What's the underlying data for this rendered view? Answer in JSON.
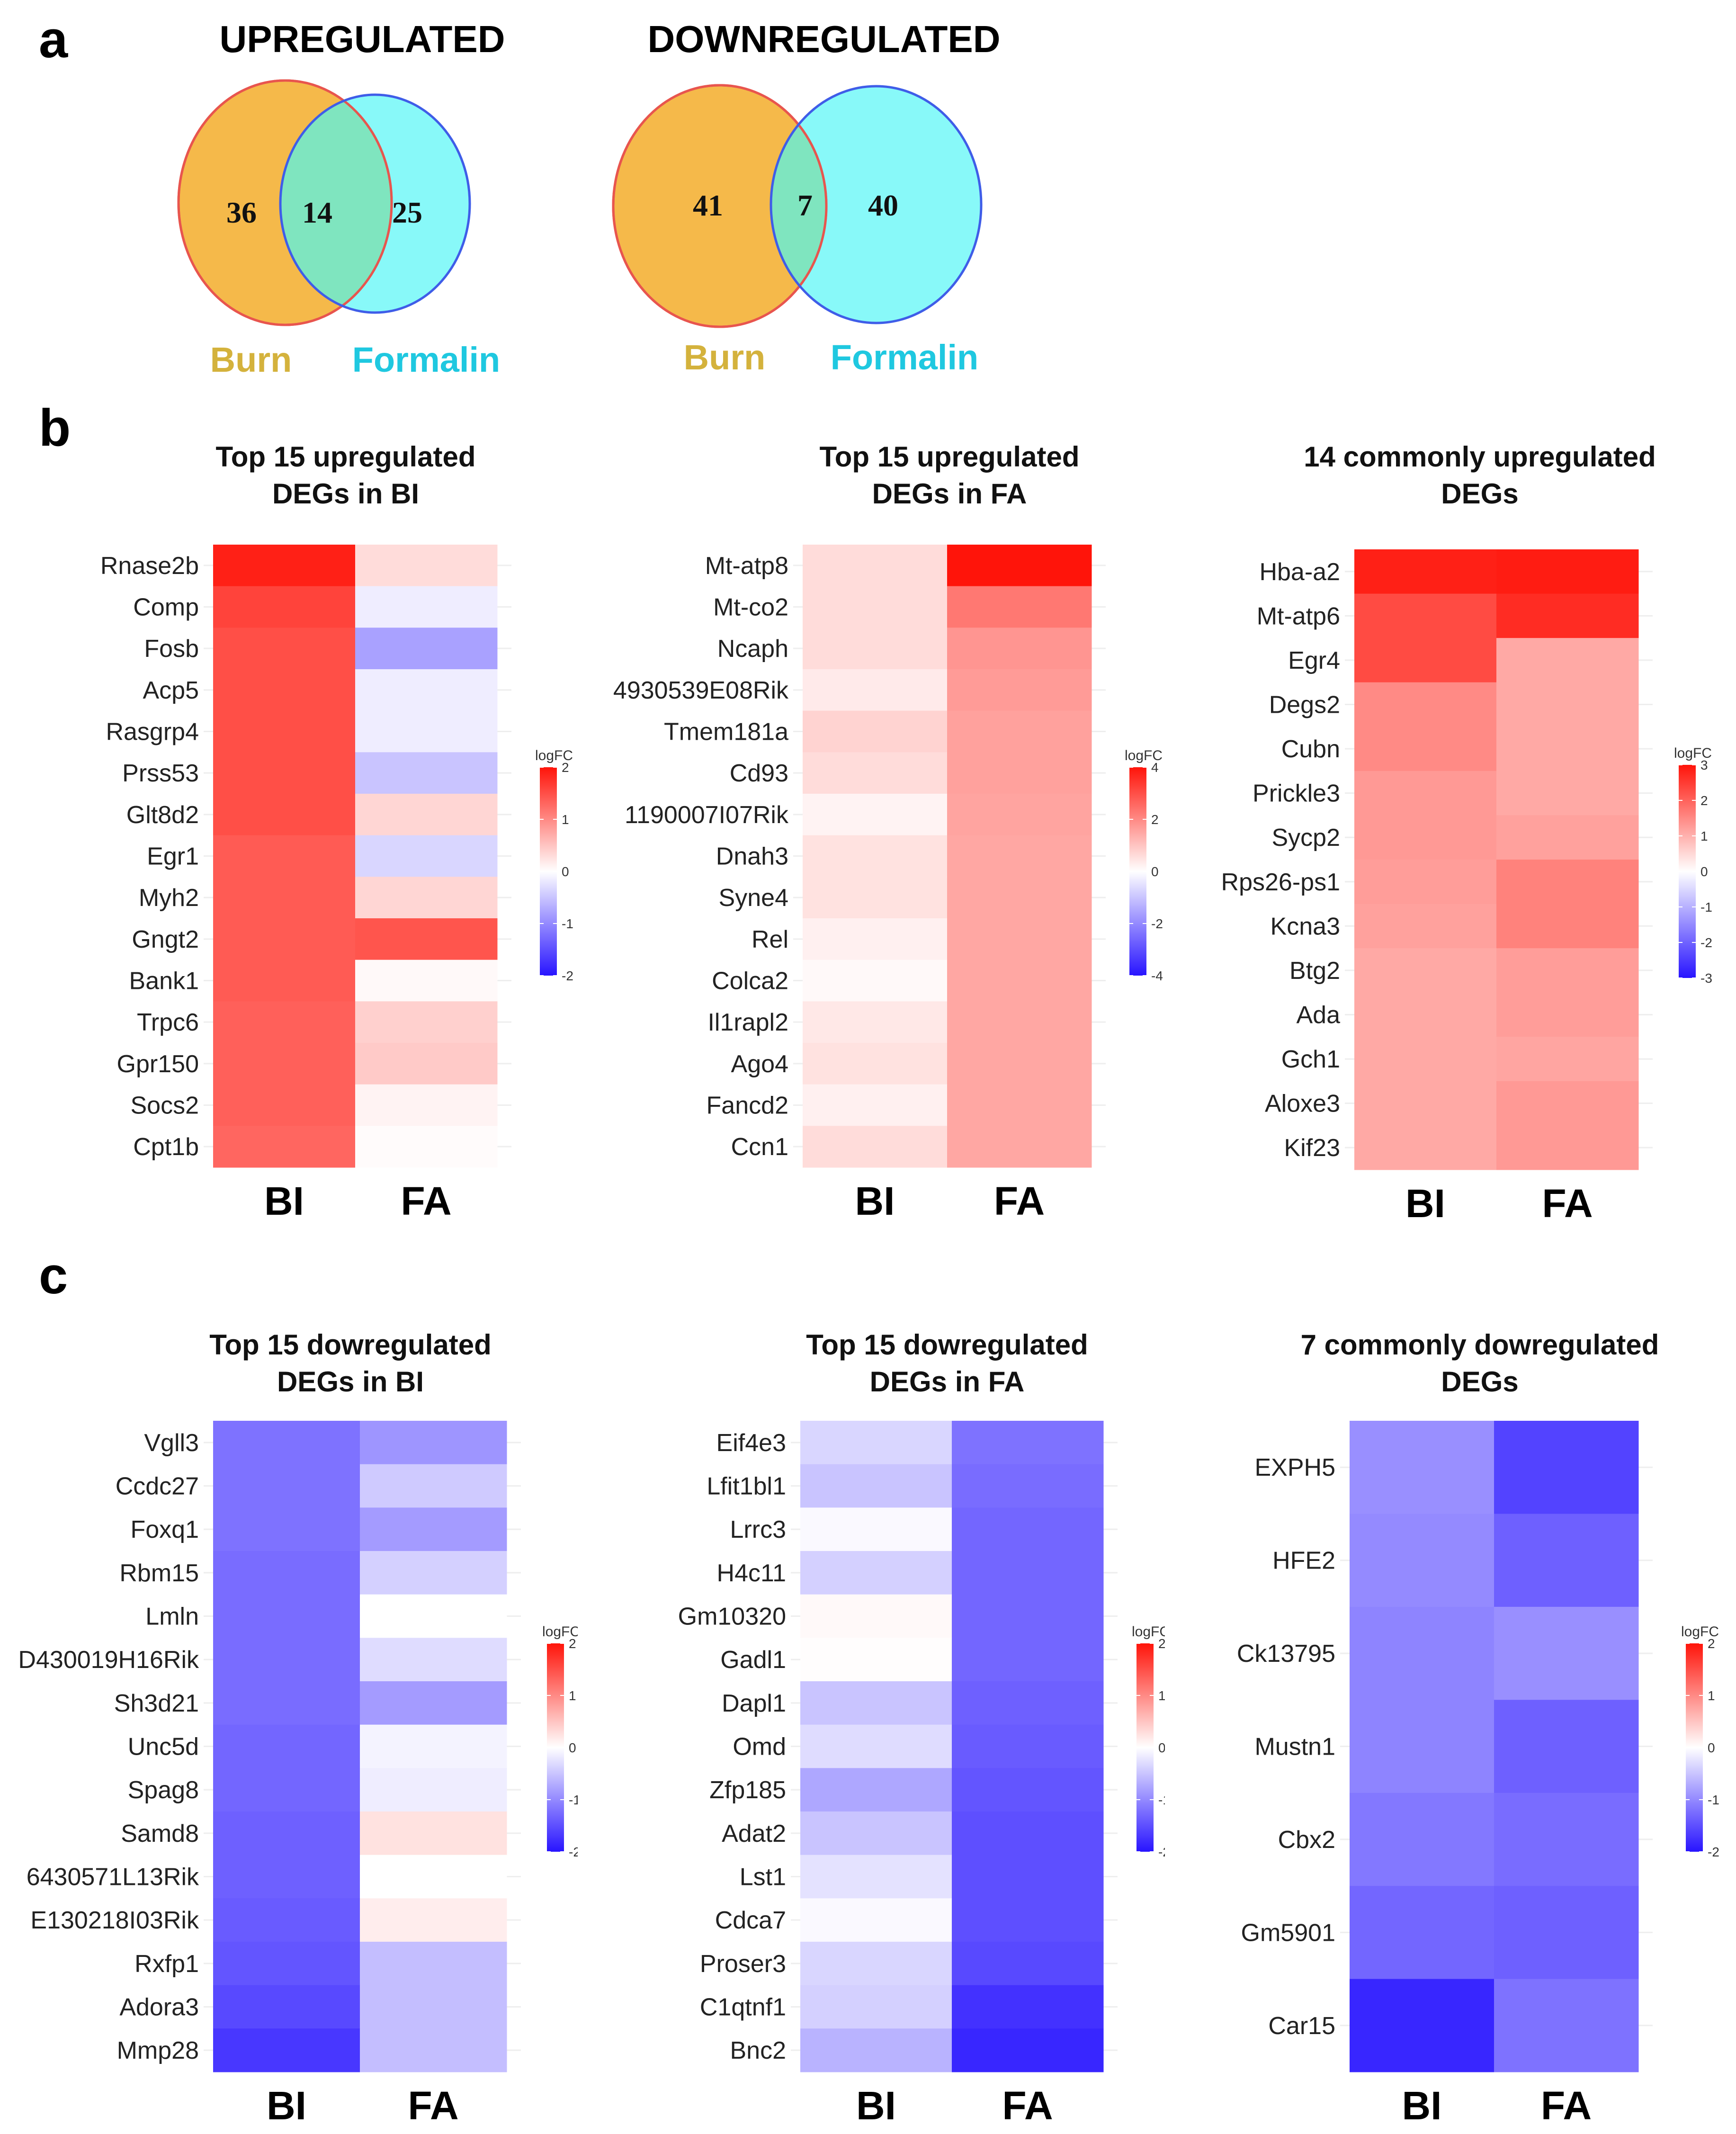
{
  "figure": {
    "panel_labels": [
      "a",
      "b",
      "c"
    ]
  },
  "chart_data": [
    {
      "type": "venn",
      "panel": "a",
      "title": "UPREGULATED",
      "sets": [
        {
          "name": "Burn",
          "color": "#f5b94a",
          "edge": "#e8554e",
          "label_color": "#d4b23c"
        },
        {
          "name": "Formalin",
          "color": "#39f5f5",
          "edge": "#3f5de8",
          "label_color": "#1fc8e0"
        }
      ],
      "only_a": 36,
      "overlap": 14,
      "only_b": 25
    },
    {
      "type": "venn",
      "panel": "a",
      "title": "DOWNREGULATED",
      "sets": [
        {
          "name": "Burn",
          "color": "#f5b94a",
          "edge": "#e8554e",
          "label_color": "#d4b23c"
        },
        {
          "name": "Formalin",
          "color": "#39f5f5",
          "edge": "#3f5de8",
          "label_color": "#1fc8e0"
        }
      ],
      "only_a": 41,
      "overlap": 7,
      "only_b": 40
    },
    {
      "type": "heatmap",
      "panel": "b",
      "title": [
        "Top 15 upregulated",
        "DEGs in BI"
      ],
      "columns": [
        "BI",
        "FA"
      ],
      "legend": {
        "title": "logFC",
        "range": [
          -2,
          2
        ],
        "ticks": [
          2,
          1,
          0,
          -1,
          -2
        ]
      },
      "rows": [
        "Rnase2b",
        "Comp",
        "Fosb",
        "Acp5",
        "Rasgrp4",
        "Prss53",
        "Glt8d2",
        "Egr1",
        "Myh2",
        "Gngt2",
        "Bank1",
        "Trpc6",
        "Gpr150",
        "Socs2",
        "Cpt1b"
      ],
      "values": [
        [
          1.9,
          0.3
        ],
        [
          1.6,
          -0.15
        ],
        [
          1.5,
          -0.8
        ],
        [
          1.5,
          -0.15
        ],
        [
          1.5,
          -0.15
        ],
        [
          1.5,
          -0.5
        ],
        [
          1.5,
          0.35
        ],
        [
          1.4,
          -0.35
        ],
        [
          1.4,
          0.35
        ],
        [
          1.4,
          1.45
        ],
        [
          1.4,
          0.05
        ],
        [
          1.35,
          0.4
        ],
        [
          1.35,
          0.45
        ],
        [
          1.35,
          0.1
        ],
        [
          1.3,
          0.03
        ]
      ]
    },
    {
      "type": "heatmap",
      "panel": "b",
      "title": [
        "Top 15 upregulated",
        "DEGs in FA"
      ],
      "columns": [
        "BI",
        "FA"
      ],
      "legend": {
        "title": "logFC",
        "range": [
          -4,
          4
        ],
        "ticks": [
          4,
          2,
          0,
          -2,
          -4
        ]
      },
      "rows": [
        "Mt-atp8",
        "Mt-co2",
        "Ncaph",
        "4930539E08Rik",
        "Tmem181a",
        "Cd93",
        "1190007I07Rik",
        "Dnah3",
        "Syne4",
        "Rel",
        "Colca2",
        "Il1rapl2",
        "Ago4",
        "Fancd2",
        "Ccn1"
      ],
      "values": [
        [
          0.6,
          4.0
        ],
        [
          0.6,
          2.3
        ],
        [
          0.6,
          1.8
        ],
        [
          0.35,
          1.7
        ],
        [
          0.75,
          1.6
        ],
        [
          0.6,
          1.6
        ],
        [
          0.2,
          1.55
        ],
        [
          0.5,
          1.5
        ],
        [
          0.5,
          1.5
        ],
        [
          0.25,
          1.5
        ],
        [
          0.1,
          1.5
        ],
        [
          0.4,
          1.5
        ],
        [
          0.5,
          1.5
        ],
        [
          0.25,
          1.5
        ],
        [
          0.6,
          1.5
        ]
      ]
    },
    {
      "type": "heatmap",
      "panel": "b",
      "title": [
        "14 commonly upregulated",
        "DEGs"
      ],
      "columns": [
        "BI",
        "FA"
      ],
      "legend": {
        "title": "logFC",
        "range": [
          -3,
          3
        ],
        "ticks": [
          3,
          2,
          1,
          0,
          -1,
          -2,
          -3
        ]
      },
      "rows": [
        "Hba-a2",
        "Mt-atp6",
        "Egr4",
        "Degs2",
        "Cubn",
        "Prickle3",
        "Sycp2",
        "Rps26-ps1",
        "Kcna3",
        "Btg2",
        "Ada",
        "Gch1",
        "Aloxe3",
        "Kif23"
      ],
      "values": [
        [
          2.85,
          2.9
        ],
        [
          2.3,
          2.7
        ],
        [
          2.3,
          1.1
        ],
        [
          1.5,
          1.1
        ],
        [
          1.5,
          1.1
        ],
        [
          1.3,
          1.1
        ],
        [
          1.3,
          1.2
        ],
        [
          1.25,
          1.6
        ],
        [
          1.2,
          1.6
        ],
        [
          1.1,
          1.25
        ],
        [
          1.1,
          1.25
        ],
        [
          1.1,
          1.15
        ],
        [
          1.1,
          1.3
        ],
        [
          1.1,
          1.3
        ]
      ]
    },
    {
      "type": "heatmap",
      "panel": "c",
      "title": [
        "Top 15 dowregulated",
        "DEGs in BI"
      ],
      "columns": [
        "BI",
        "FA"
      ],
      "legend": {
        "title": "logFC",
        "range": [
          -2,
          2
        ],
        "ticks": [
          2,
          1,
          0,
          -1,
          -2
        ]
      },
      "rows": [
        "Vgll3",
        "Ccdc27",
        "Foxq1",
        "Rbm15",
        "Lmln",
        "D430019H16Rik",
        "Sh3d21",
        "Unc5d",
        "Spag8",
        "Samd8",
        "6430571L13Rik",
        "E130218I03Rik",
        "Rxfp1",
        "Adora3",
        "Mmp28"
      ],
      "values": [
        [
          -1.2,
          -0.9
        ],
        [
          -1.2,
          -0.45
        ],
        [
          -1.2,
          -0.85
        ],
        [
          -1.25,
          -0.4
        ],
        [
          -1.25,
          0.0
        ],
        [
          -1.25,
          -0.3
        ],
        [
          -1.25,
          -0.85
        ],
        [
          -1.3,
          -0.1
        ],
        [
          -1.3,
          -0.15
        ],
        [
          -1.35,
          0.25
        ],
        [
          -1.35,
          0.0
        ],
        [
          -1.4,
          0.15
        ],
        [
          -1.45,
          -0.55
        ],
        [
          -1.55,
          -0.55
        ],
        [
          -1.7,
          -0.55
        ]
      ]
    },
    {
      "type": "heatmap",
      "panel": "c",
      "title": [
        "Top 15 dowregulated",
        "DEGs in FA"
      ],
      "columns": [
        "BI",
        "FA"
      ],
      "legend": {
        "title": "logFC",
        "range": [
          -2,
          2
        ],
        "ticks": [
          2,
          1,
          0,
          -1,
          -2
        ]
      },
      "rows": [
        "Eif4e3",
        "Lfit1bl1",
        "Lrrc3",
        "H4c11",
        "Gm10320",
        "Gadl1",
        "Dapl1",
        "Omd",
        "Zfp185",
        "Adat2",
        "Lst1",
        "Cdca7",
        "Proser3",
        "C1qtnf1",
        "Bnc2"
      ],
      "values": [
        [
          -0.35,
          -1.2
        ],
        [
          -0.5,
          -1.25
        ],
        [
          -0.05,
          -1.3
        ],
        [
          -0.4,
          -1.3
        ],
        [
          0.05,
          -1.3
        ],
        [
          0.02,
          -1.3
        ],
        [
          -0.5,
          -1.35
        ],
        [
          -0.3,
          -1.4
        ],
        [
          -0.75,
          -1.45
        ],
        [
          -0.5,
          -1.5
        ],
        [
          -0.25,
          -1.5
        ],
        [
          -0.05,
          -1.5
        ],
        [
          -0.35,
          -1.55
        ],
        [
          -0.4,
          -1.75
        ],
        [
          -0.65,
          -1.85
        ]
      ]
    },
    {
      "type": "heatmap",
      "panel": "c",
      "title": [
        "7 commonly dowregulated",
        "DEGs"
      ],
      "columns": [
        "BI",
        "FA"
      ],
      "legend": {
        "title": "logFC",
        "range": [
          -2,
          2
        ],
        "ticks": [
          2,
          1,
          0,
          -1,
          -2
        ]
      },
      "rows": [
        "EXPH5",
        "HFE2",
        "Ck13795",
        "Mustn1",
        "Cbx2",
        "Gm5901",
        "Car15"
      ],
      "values": [
        [
          -0.95,
          -1.6
        ],
        [
          -1.0,
          -1.35
        ],
        [
          -1.05,
          -0.95
        ],
        [
          -1.05,
          -1.35
        ],
        [
          -1.15,
          -1.25
        ],
        [
          -1.3,
          -1.35
        ],
        [
          -1.85,
          -1.2
        ]
      ]
    }
  ]
}
